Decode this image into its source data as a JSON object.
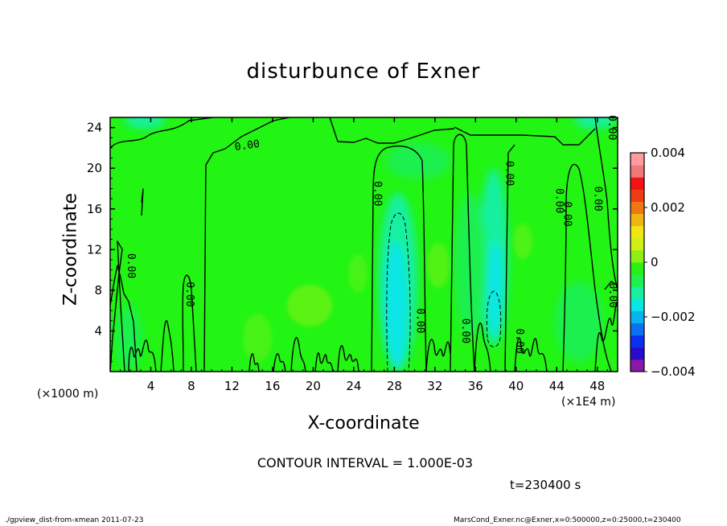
{
  "chart_data": {
    "type": "heatmap",
    "title": "disturbunce of Exner",
    "xlabel": "X-coordinate",
    "ylabel": "Z-coordinate",
    "x_unit_left": "(×1000 m)",
    "x_unit_right": "(×1E4 m)",
    "xlim": [
      0,
      50
    ],
    "ylim": [
      0,
      25
    ],
    "x_ticks": [
      4,
      8,
      12,
      16,
      20,
      24,
      28,
      32,
      36,
      40,
      44,
      48
    ],
    "y_ticks": [
      4,
      8,
      12,
      16,
      20,
      24
    ],
    "x_tick_labels": [
      "4",
      "8",
      "12",
      "16",
      "20",
      "24",
      "28",
      "32",
      "36",
      "40",
      "44",
      "48"
    ],
    "y_tick_labels": [
      "4",
      "8",
      "12",
      "16",
      "20",
      "24"
    ],
    "colorbar": {
      "range": [
        -0.004,
        0.004
      ],
      "labels": [
        "0.004",
        "0.002",
        "0",
        "−0.002",
        "−0.004"
      ],
      "label_values": [
        0.004,
        0.002,
        0,
        -0.002,
        -0.004
      ],
      "colors": [
        "#8a1aa6",
        "#2a0acc",
        "#0a30f0",
        "#0c70f0",
        "#08b4f0",
        "#08e6e6",
        "#18f0a0",
        "#1ef050",
        "#28f014",
        "#8cf014",
        "#d0f014",
        "#f0e614",
        "#f0b414",
        "#f07814",
        "#f03c14",
        "#f01414",
        "#f07878",
        "#ff9ca0"
      ]
    },
    "contour_label": "0.00",
    "contour_interval": "CONTOUR INTERVAL = 1.000E-03",
    "time": "t=230400 s",
    "background_color": "#22f414"
  },
  "footer": {
    "left": "./gpview_dist-from-xmean  2011-07-23",
    "right": "MarsCond_Exner.nc@Exner,x=0:500000,z=0:25000,t=230400"
  }
}
